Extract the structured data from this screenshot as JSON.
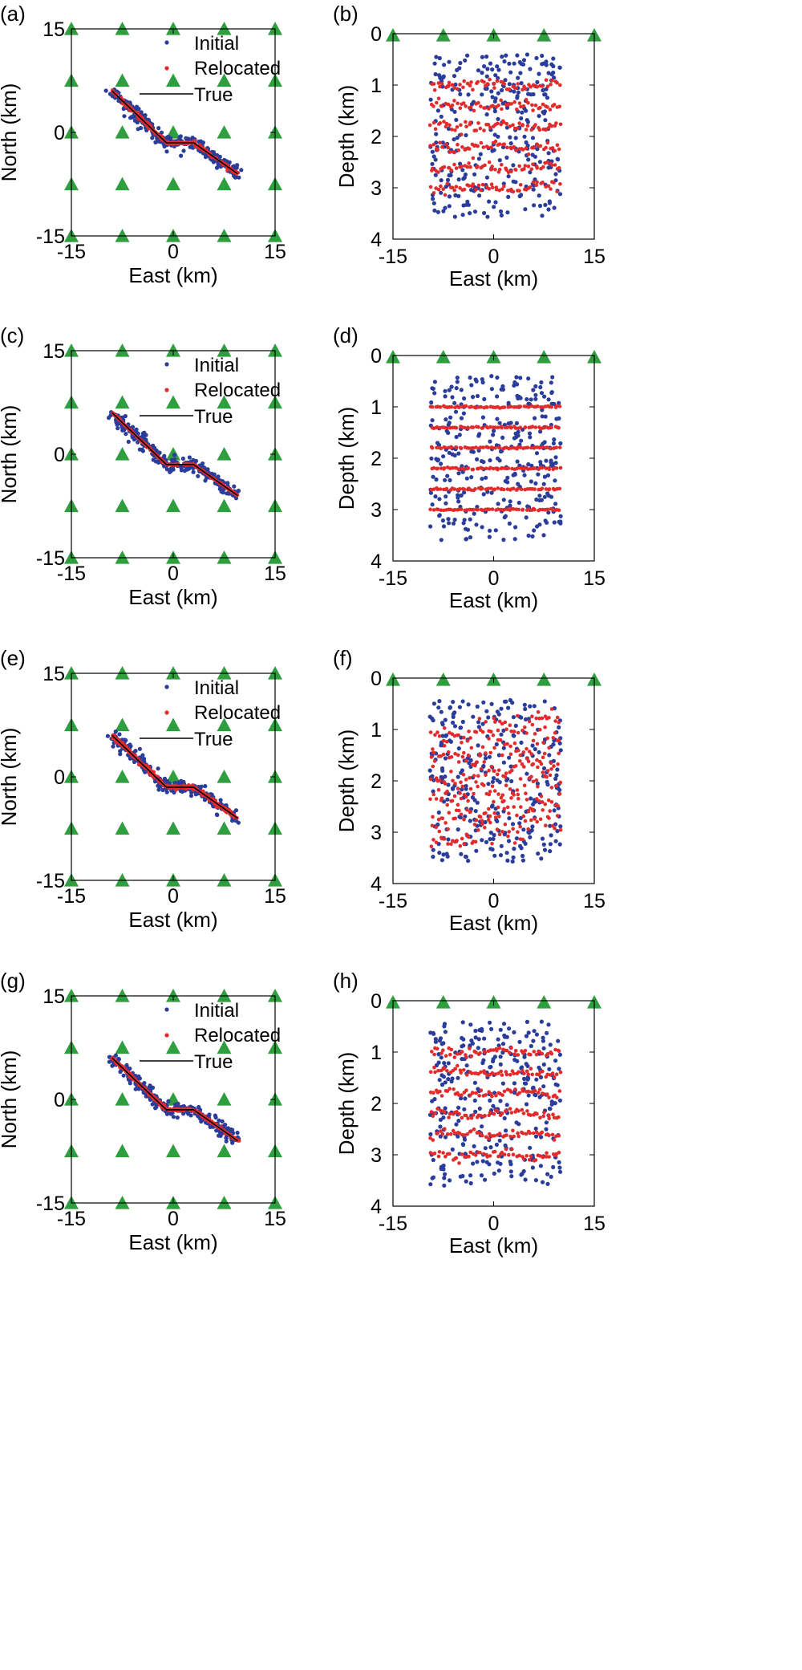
{
  "colors": {
    "initial": "#2b3d9a",
    "relocated": "#e32b2b",
    "true_line": "#000000",
    "station": "#2e9e3f"
  },
  "station_marker": "triangle",
  "chart_data": [
    {
      "panel": "(a)",
      "type": "scatter",
      "view": "map",
      "xlabel": "East (km)",
      "ylabel": "North (km)",
      "xlim": [
        -15,
        15
      ],
      "ylim": [
        -15,
        15
      ],
      "xticks": [
        "-15",
        "0",
        "15"
      ],
      "yticks": [
        "15",
        "0",
        "-15"
      ],
      "legend": [
        "Initial",
        "Relocated",
        "True"
      ],
      "legend_position": "top-right",
      "true_fault": {
        "x": [
          -9,
          -1,
          3,
          9.5
        ],
        "y": [
          6,
          -1.5,
          -1.5,
          -6
        ]
      },
      "stations": {
        "x": [
          -15,
          -7.5,
          0,
          7.5,
          15
        ],
        "y": [
          15,
          7.5,
          0,
          -7.5,
          -15
        ]
      },
      "initial_scatter": 0.45,
      "relocated_scatter": 0.12
    },
    {
      "panel": "(b)",
      "type": "scatter",
      "view": "section",
      "xlabel": "East (km)",
      "ylabel": "Depth (km)",
      "xlim": [
        -15,
        15
      ],
      "ylim": [
        0,
        4
      ],
      "xticks": [
        "-15",
        "0",
        "15"
      ],
      "yticks": [
        "0",
        "1",
        "2",
        "3",
        "4"
      ],
      "stations_x": [
        -15,
        -7.5,
        0,
        7.5,
        15
      ],
      "event_depths": [
        1.0,
        1.4,
        1.8,
        2.2,
        2.6,
        3.0
      ],
      "event_x_range": [
        -9.5,
        10
      ],
      "initial_depth_range": [
        0.4,
        3.6
      ],
      "relocated_mode": "wavy",
      "relocated_scatter": 0.05
    },
    {
      "panel": "(c)",
      "type": "scatter",
      "view": "map",
      "xlabel": "East (km)",
      "ylabel": "North (km)",
      "xlim": [
        -15,
        15
      ],
      "ylim": [
        -15,
        15
      ],
      "xticks": [
        "-15",
        "0",
        "15"
      ],
      "yticks": [
        "15",
        "0",
        "-15"
      ],
      "legend": [
        "Initial",
        "Relocated",
        "True"
      ],
      "legend_position": "top-right",
      "true_fault": {
        "x": [
          -9,
          -1,
          3,
          9.5
        ],
        "y": [
          6,
          -1.5,
          -1.5,
          -6
        ]
      },
      "stations": {
        "x": [
          -15,
          -7.5,
          0,
          7.5,
          15
        ],
        "y": [
          15,
          7.5,
          0,
          -7.5,
          -15
        ]
      },
      "initial_scatter": 0.45,
      "relocated_scatter": 0.05
    },
    {
      "panel": "(d)",
      "type": "scatter",
      "view": "section",
      "xlabel": "East (km)",
      "ylabel": "Depth (km)",
      "xlim": [
        -15,
        15
      ],
      "ylim": [
        0,
        4
      ],
      "xticks": [
        "-15",
        "0",
        "15"
      ],
      "yticks": [
        "0",
        "1",
        "2",
        "3",
        "4"
      ],
      "stations_x": [
        -15,
        -7.5,
        0,
        7.5,
        15
      ],
      "event_depths": [
        1.0,
        1.4,
        1.8,
        2.2,
        2.6,
        3.0
      ],
      "event_x_range": [
        -9.5,
        10
      ],
      "initial_depth_range": [
        0.4,
        3.6
      ],
      "relocated_mode": "tight",
      "relocated_scatter": 0.01
    },
    {
      "panel": "(e)",
      "type": "scatter",
      "view": "map",
      "xlabel": "East (km)",
      "ylabel": "North (km)",
      "xlim": [
        -15,
        15
      ],
      "ylim": [
        -15,
        15
      ],
      "xticks": [
        "-15",
        "0",
        "15"
      ],
      "yticks": [
        "15",
        "0",
        "-15"
      ],
      "legend": [
        "Initial",
        "Relocated",
        "True"
      ],
      "legend_position": "top-right",
      "true_fault": {
        "x": [
          -9,
          -1,
          3,
          9.5
        ],
        "y": [
          6,
          -1.5,
          -1.5,
          -6
        ]
      },
      "stations": {
        "x": [
          -15,
          -7.5,
          0,
          7.5,
          15
        ],
        "y": [
          15,
          7.5,
          0,
          -7.5,
          -15
        ]
      },
      "initial_scatter": 0.45,
      "relocated_scatter": 0.15
    },
    {
      "panel": "(f)",
      "type": "scatter",
      "view": "section",
      "xlabel": "East (km)",
      "ylabel": "Depth (km)",
      "xlim": [
        -15,
        15
      ],
      "ylim": [
        0,
        4
      ],
      "xticks": [
        "-15",
        "0",
        "15"
      ],
      "yticks": [
        "0",
        "1",
        "2",
        "3",
        "4"
      ],
      "stations_x": [
        -15,
        -7.5,
        0,
        7.5,
        15
      ],
      "event_depths": [
        1.0,
        1.4,
        1.8,
        2.2,
        2.6,
        3.0
      ],
      "event_x_range": [
        -9.5,
        10
      ],
      "initial_depth_range": [
        0.4,
        3.6
      ],
      "relocated_mode": "tilted",
      "relocated_scatter": 0.07
    },
    {
      "panel": "(g)",
      "type": "scatter",
      "view": "map",
      "xlabel": "East (km)",
      "ylabel": "North (km)",
      "xlim": [
        -15,
        15
      ],
      "ylim": [
        -15,
        15
      ],
      "xticks": [
        "-15",
        "0",
        "15"
      ],
      "yticks": [
        "15",
        "0",
        "-15"
      ],
      "legend": [
        "Initial",
        "Relocated",
        "True"
      ],
      "legend_position": "top-right",
      "true_fault": {
        "x": [
          -9,
          -1,
          3,
          9.5
        ],
        "y": [
          6,
          -1.5,
          -1.5,
          -6
        ]
      },
      "stations": {
        "x": [
          -15,
          -7.5,
          0,
          7.5,
          15
        ],
        "y": [
          15,
          7.5,
          0,
          -7.5,
          -15
        ]
      },
      "initial_scatter": 0.45,
      "relocated_scatter": 0.1
    },
    {
      "panel": "(h)",
      "type": "scatter",
      "view": "section",
      "xlabel": "East (km)",
      "ylabel": "Depth (km)",
      "xlim": [
        -15,
        15
      ],
      "ylim": [
        0,
        4
      ],
      "xticks": [
        "-15",
        "0",
        "15"
      ],
      "yticks": [
        "0",
        "1",
        "2",
        "3",
        "4"
      ],
      "stations_x": [
        -15,
        -7.5,
        0,
        7.5,
        15
      ],
      "event_depths": [
        1.0,
        1.4,
        1.8,
        2.2,
        2.6,
        3.0
      ],
      "event_x_range": [
        -9.5,
        10
      ],
      "initial_depth_range": [
        0.4,
        3.6
      ],
      "relocated_mode": "wavy",
      "relocated_scatter": 0.04
    }
  ]
}
